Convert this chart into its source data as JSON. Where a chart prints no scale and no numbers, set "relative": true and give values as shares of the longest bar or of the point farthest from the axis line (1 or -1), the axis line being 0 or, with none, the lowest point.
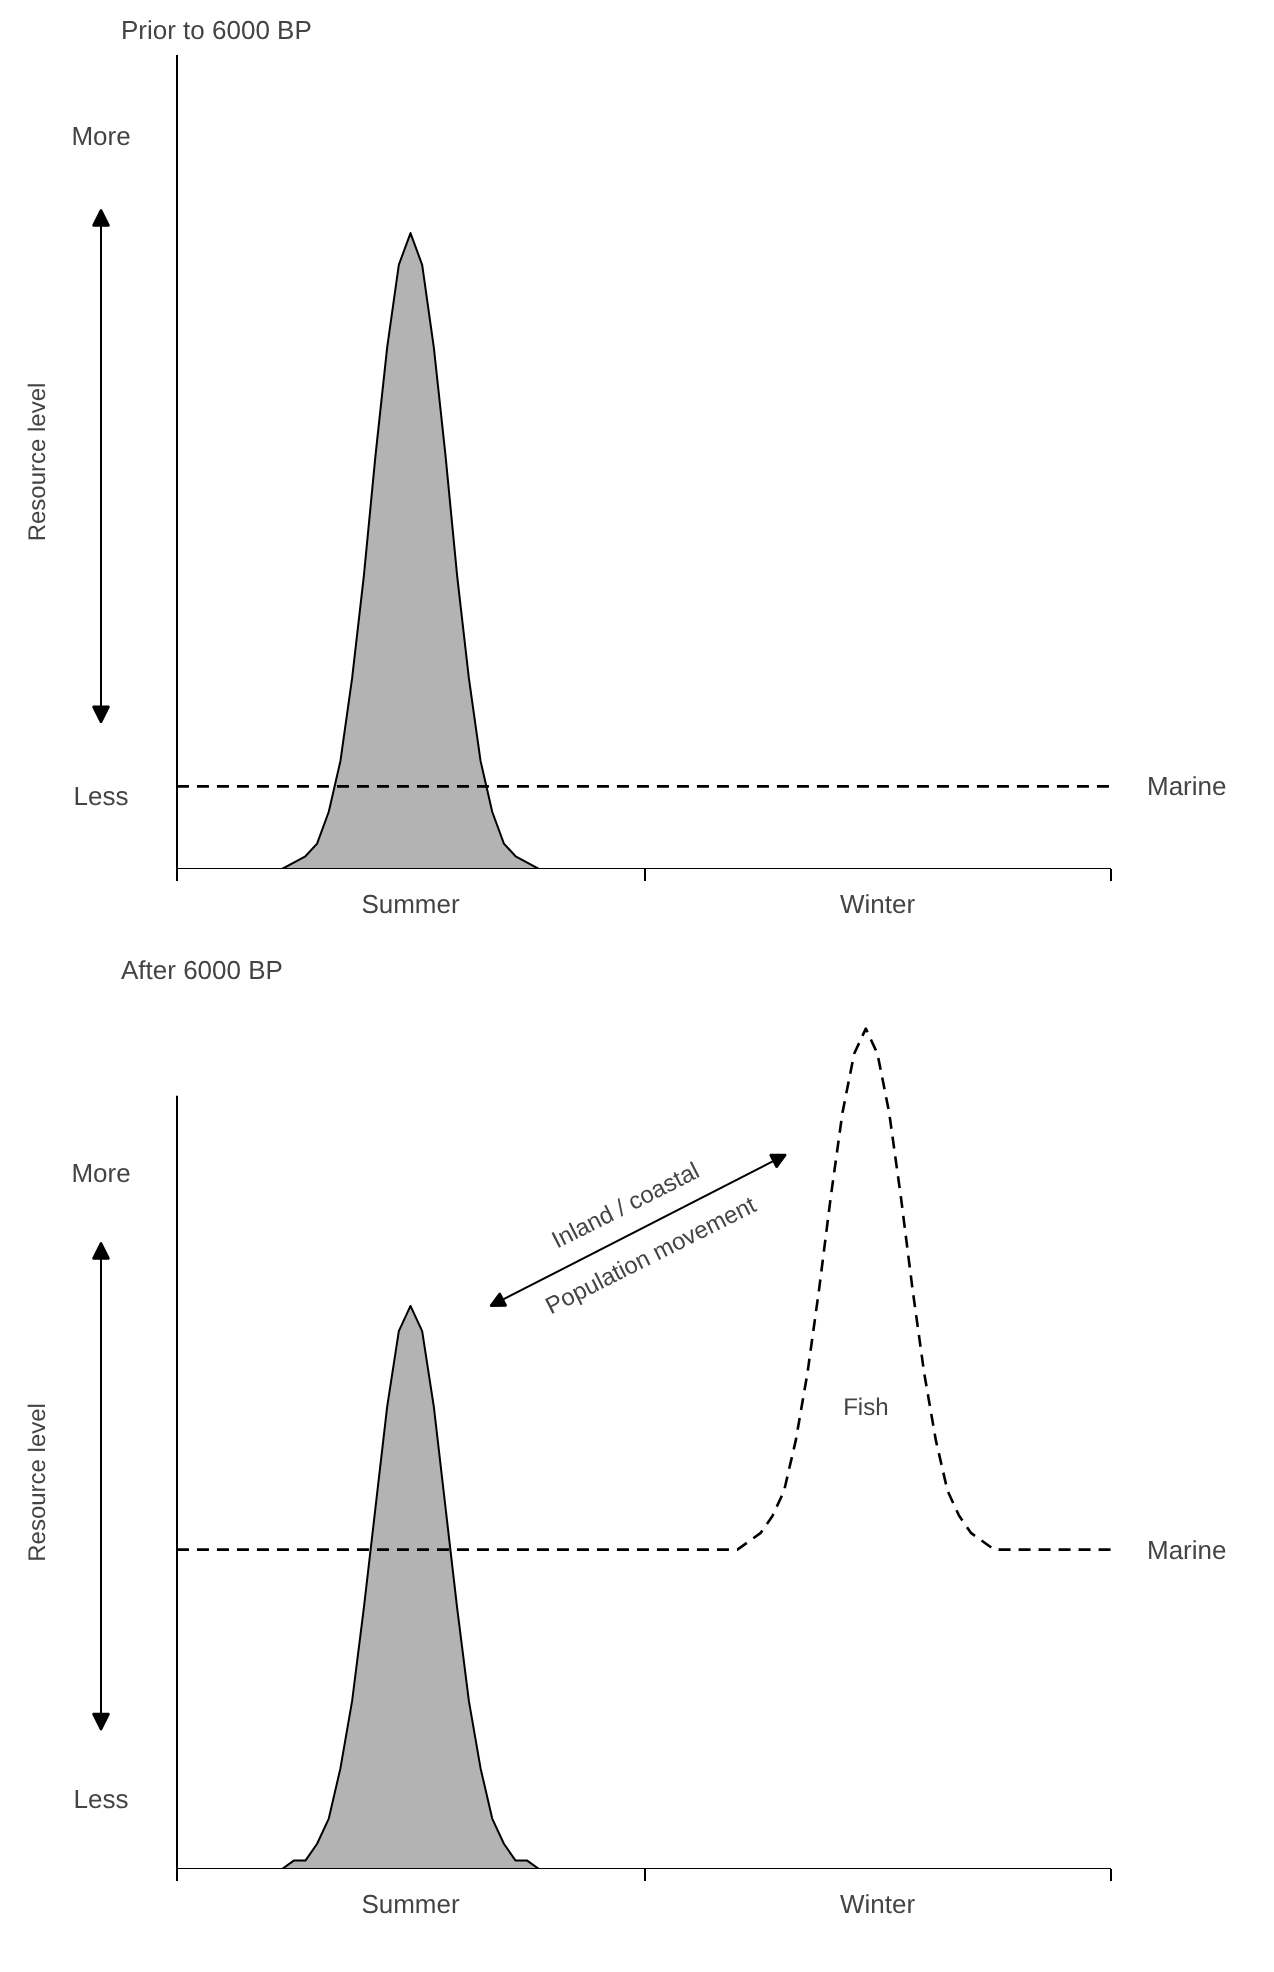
{
  "chart_data": [
    {
      "type": "area",
      "title": "Prior to 6000 BP",
      "ylabel": "Resource level",
      "relative": true,
      "categories": [
        null,
        null,
        null,
        null,
        null,
        null,
        null,
        null,
        null,
        null,
        null,
        null,
        null,
        null,
        null,
        null,
        null,
        null,
        null,
        null,
        "Summer",
        null,
        null,
        null,
        null,
        null,
        null,
        null,
        null,
        null,
        null,
        null,
        null,
        null,
        null,
        null,
        null,
        null,
        null,
        null,
        null,
        null,
        null,
        null,
        null,
        null,
        null,
        null,
        null,
        null,
        null,
        null,
        null,
        null,
        null,
        null,
        null,
        null,
        null,
        null,
        "Winter",
        null,
        null,
        null,
        null,
        null,
        null,
        null,
        null,
        null,
        null,
        null,
        null,
        null,
        null,
        null,
        null,
        null,
        null,
        null,
        null
      ],
      "annotations": [
        "More",
        "Less"
      ],
      "grid": false,
      "series": [
        {
          "color": "#b3b3b3",
          "values": [
            null,
            null,
            null,
            null,
            null,
            null,
            null,
            null,
            0,
            0,
            0.01,
            0.02,
            0.04,
            0.09,
            0.17,
            0.3,
            0.46,
            0.65,
            0.82,
            0.95,
            1,
            0.95,
            0.82,
            0.65,
            0.46,
            0.3,
            0.17,
            0.09,
            0.04,
            0.02,
            0.01,
            0,
            0,
            null,
            null,
            null,
            null,
            null,
            null,
            null,
            null,
            null,
            null,
            null,
            null,
            null,
            null,
            null,
            null,
            null,
            null,
            null,
            null,
            null,
            null,
            null,
            null,
            null,
            null,
            null,
            null,
            null,
            null,
            null,
            null,
            null,
            null,
            null,
            null,
            null,
            null,
            null,
            null,
            null,
            null,
            null,
            null,
            null,
            null,
            null,
            null
          ]
        },
        {
          "type": "line",
          "name": "Marine",
          "color": "#000000",
          "line_style": "dashed",
          "values": [
            0.13,
            0.13,
            0.13,
            0.13,
            0.13,
            0.13,
            0.13,
            0.13,
            0.13,
            0.13,
            0.13,
            0.13,
            0.13,
            0.13,
            0.13,
            0.13,
            0.13,
            0.13,
            0.13,
            0.13,
            0.13,
            0.13,
            0.13,
            0.13,
            0.13,
            0.13,
            0.13,
            0.13,
            0.13,
            0.13,
            0.13,
            0.13,
            0.13,
            0.13,
            0.13,
            0.13,
            0.13,
            0.13,
            0.13,
            0.13,
            0.13,
            0.13,
            0.13,
            0.13,
            0.13,
            0.13,
            0.13,
            0.13,
            0.13,
            0.13,
            0.13,
            0.13,
            0.13,
            0.13,
            0.13,
            0.13,
            0.13,
            0.13,
            0.13,
            0.13,
            0.13,
            0.13,
            0.13,
            0.13,
            0.13,
            0.13,
            0.13,
            0.13,
            0.13,
            0.13,
            0.13,
            0.13,
            0.13,
            0.13,
            0.13,
            0.13,
            0.13,
            0.13,
            0.13,
            0.13,
            0.13
          ]
        }
      ]
    },
    {
      "type": "area",
      "title": "After 6000 BP",
      "ylabel": "Resource level",
      "relative": true,
      "categories": [
        null,
        null,
        null,
        null,
        null,
        null,
        null,
        null,
        null,
        null,
        null,
        null,
        null,
        null,
        null,
        null,
        null,
        null,
        null,
        null,
        "Summer",
        null,
        null,
        null,
        null,
        null,
        null,
        null,
        null,
        null,
        null,
        null,
        null,
        null,
        null,
        null,
        null,
        null,
        null,
        null,
        null,
        null,
        null,
        null,
        null,
        null,
        null,
        null,
        null,
        null,
        null,
        null,
        null,
        null,
        null,
        null,
        null,
        null,
        null,
        null,
        "Winter",
        null,
        null,
        null,
        null,
        null,
        null,
        null,
        null,
        null,
        null,
        null,
        null,
        null,
        null,
        null,
        null,
        null,
        null,
        null,
        null
      ],
      "annotations": [
        "More",
        "Less",
        "Inland / coastal",
        "Population movement",
        "Fish"
      ],
      "grid": false,
      "series": [
        {
          "color": "#b3b3b3",
          "values": [
            null,
            null,
            null,
            null,
            null,
            null,
            null,
            null,
            0,
            0,
            0.01,
            0.01,
            0.03,
            0.06,
            0.12,
            0.2,
            0.31,
            0.43,
            0.55,
            0.64,
            0.67,
            0.64,
            0.55,
            0.43,
            0.31,
            0.2,
            0.12,
            0.06,
            0.03,
            0.01,
            0.01,
            0,
            0,
            null,
            null,
            null,
            null,
            null,
            null,
            null,
            null,
            null,
            null,
            null,
            null,
            null,
            null,
            null,
            null,
            null,
            null,
            null,
            null,
            null,
            null,
            null,
            null,
            null,
            null,
            null,
            null,
            null,
            null,
            null,
            null,
            null,
            null,
            null,
            null,
            null,
            null,
            null,
            null,
            null,
            null,
            null,
            null,
            null,
            null,
            null,
            null
          ]
        },
        {
          "type": "line",
          "name": "Marine",
          "color": "#000000",
          "line_style": "dashed",
          "values": [
            0.38,
            0.38,
            0.38,
            0.38,
            0.38,
            0.38,
            0.38,
            0.38,
            0.38,
            0.38,
            0.38,
            0.38,
            0.38,
            0.38,
            0.38,
            0.38,
            0.38,
            0.38,
            0.38,
            0.38,
            0.38,
            0.38,
            0.38,
            0.38,
            0.38,
            0.38,
            0.38,
            0.38,
            0.38,
            0.38,
            0.38,
            0.38,
            0.38,
            0.38,
            0.38,
            0.38,
            0.38,
            0.38,
            0.38,
            0.38,
            0.38,
            0.38,
            0.38,
            0.38,
            0.38,
            0.38,
            0.38,
            0.38,
            0.38,
            0.39,
            0.4,
            0.42,
            0.45,
            0.51,
            0.59,
            0.69,
            0.8,
            0.9,
            0.97,
            1,
            0.97,
            0.9,
            0.8,
            0.69,
            0.59,
            0.51,
            0.45,
            0.42,
            0.4,
            0.39,
            0.38,
            0.38,
            0.38,
            0.38,
            0.38,
            0.38,
            0.38,
            0.38,
            0.38,
            0.38,
            0.38
          ]
        }
      ]
    }
  ]
}
